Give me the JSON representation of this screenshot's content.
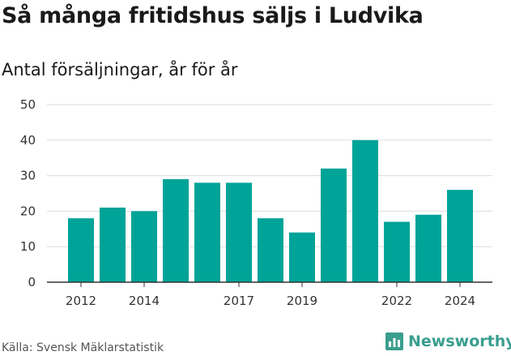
{
  "title": "Så många fritidshus säljs i Ludvika",
  "subtitle": "Antal försäljningar, år för år",
  "source": "Källa: Svensk Mäklarstatistik",
  "brand": {
    "name": "Newsworthy",
    "icon": "bar-chart-icon"
  },
  "colors": {
    "bar": "#00a398",
    "grid": "#dddddd",
    "brand": "#3a9e8f"
  },
  "chart_data": {
    "type": "bar",
    "categories": [
      "2012",
      "2013",
      "2014",
      "2015",
      "2016",
      "2017",
      "2018",
      "2019",
      "2020",
      "2021",
      "2022",
      "2023",
      "2024"
    ],
    "values": [
      18,
      21,
      20,
      29,
      28,
      28,
      18,
      14,
      32,
      40,
      17,
      19,
      26
    ],
    "xtick_labels": [
      "2012",
      "2014",
      "2017",
      "2019",
      "2022",
      "2024"
    ],
    "yticks": [
      0,
      10,
      20,
      30,
      40,
      50
    ],
    "ylim": [
      0,
      50
    ],
    "grid": true,
    "xlabel": "",
    "ylabel": ""
  }
}
